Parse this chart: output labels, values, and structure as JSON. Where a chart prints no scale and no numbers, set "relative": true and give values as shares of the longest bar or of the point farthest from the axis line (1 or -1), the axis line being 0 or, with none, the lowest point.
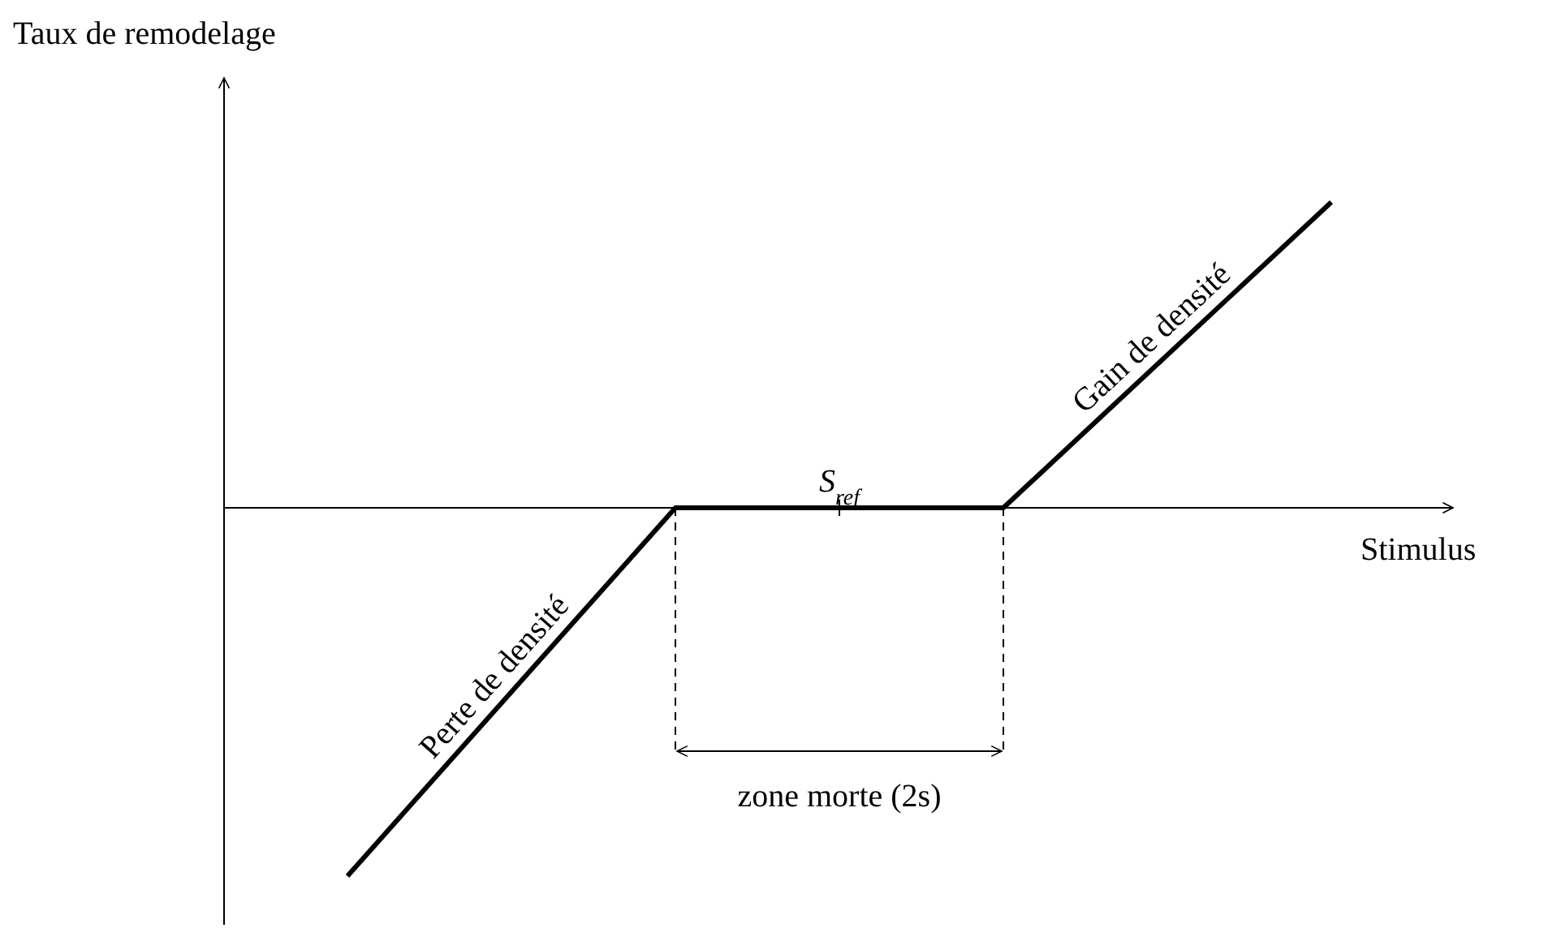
{
  "chart_data": {
    "type": "line",
    "relative": true,
    "xlabel": "Stimulus",
    "ylabel": "Taux de remodelage",
    "categories": [
      null,
      null,
      null,
      null
    ],
    "series": [
      {
        "color": "#000000",
        "values": [
          -1,
          0,
          0,
          0.83
        ]
      }
    ],
    "annotations": [
      "Perte de densité",
      "Gain de densité",
      "S$_{ref}$",
      "zone morte (2s)"
    ]
  }
}
